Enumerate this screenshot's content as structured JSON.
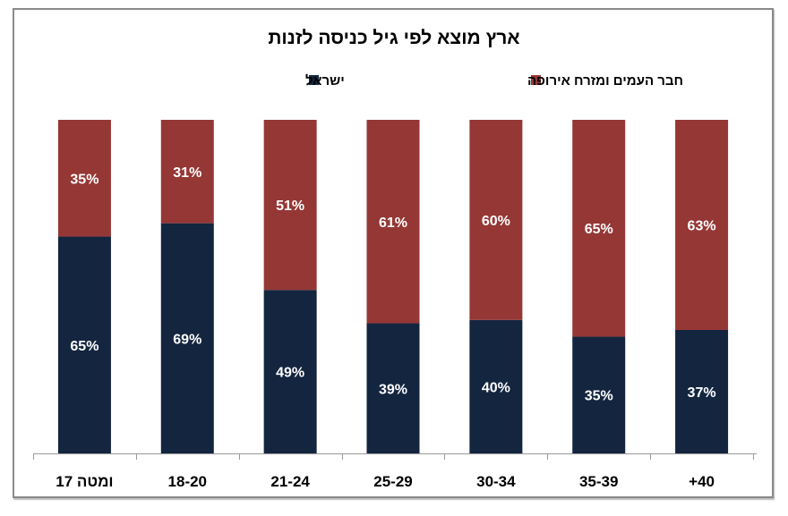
{
  "chart_data": {
    "type": "bar",
    "stacked": true,
    "title": "ארץ מוצא לפי גיל כניסה לזנות",
    "categories": [
      "17 ומטה",
      "18-20",
      "21-24",
      "25-29",
      "30-34",
      "35-39",
      "+40"
    ],
    "series": [
      {
        "name": "ישראל",
        "color": "#13253f",
        "values": [
          65,
          69,
          49,
          39,
          40,
          35,
          37
        ]
      },
      {
        "name": "חבר העמים ומזרח אירופה",
        "color": "#953735",
        "values": [
          35,
          31,
          51,
          61,
          60,
          65,
          63
        ]
      }
    ],
    "value_format": "percent",
    "ylim": [
      0,
      100
    ],
    "grid": false,
    "legend_position": "top"
  }
}
